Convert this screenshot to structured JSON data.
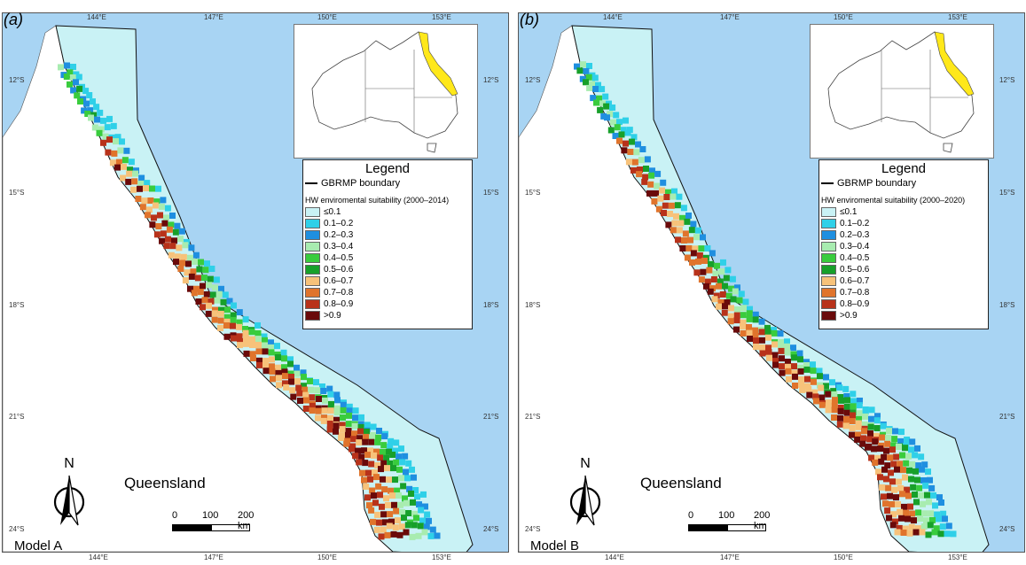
{
  "panels": [
    {
      "id": "a",
      "letter": "(a)",
      "model_label": "Model A",
      "legend_title": "Legend",
      "boundary_label": "GBRMP boundary",
      "suitability_title": "HW enviromental suitability (2000–2014)",
      "place_label": "Queensland",
      "north_label": "N",
      "scale_labels": [
        "0",
        "100",
        "200 km"
      ],
      "lon_ticks_top": [
        "144°E",
        "147°E",
        "150°E",
        "153°E"
      ],
      "lon_ticks_bottom": [
        "144°E",
        "147°E",
        "150°E",
        "153°E"
      ],
      "lat_ticks_left": [
        "12°S",
        "15°S",
        "18°S",
        "21°S",
        "24°S"
      ],
      "lat_ticks_right": [
        "12°S",
        "15°S",
        "18°S",
        "21°S",
        "24°S"
      ]
    },
    {
      "id": "b",
      "letter": "(b)",
      "model_label": "Model B",
      "legend_title": "Legend",
      "boundary_label": "GBRMP boundary",
      "suitability_title": "HW enviromental suitability (2000–2020)",
      "place_label": "Queensland",
      "north_label": "N",
      "scale_labels": [
        "0",
        "100",
        "200 km"
      ],
      "lon_ticks_top": [
        "144°E",
        "147°E",
        "150°E",
        "153°E"
      ],
      "lon_ticks_bottom": [
        "144°E",
        "147°E",
        "150°E",
        "153°E"
      ],
      "lat_ticks_left": [
        "12°S",
        "15°S",
        "18°S",
        "21°S",
        "24°S"
      ],
      "lat_ticks_right": [
        "12°S",
        "15°S",
        "18°S",
        "21°S",
        "24°S"
      ]
    }
  ],
  "legend_classes": [
    {
      "label": "≤0.1",
      "color": "#c9f2f5"
    },
    {
      "label": "0.1–0.2",
      "color": "#2fd0e8"
    },
    {
      "label": "0.2–0.3",
      "color": "#1f8fe0"
    },
    {
      "label": "0.3–0.4",
      "color": "#a8ecb0"
    },
    {
      "label": "0.4–0.5",
      "color": "#39cc3d"
    },
    {
      "label": "0.5–0.6",
      "color": "#17a02a"
    },
    {
      "label": "0.6–0.7",
      "color": "#f7c27a"
    },
    {
      "label": "0.7–0.8",
      "color": "#e0742c"
    },
    {
      "label": "0.8–0.9",
      "color": "#b8321a"
    },
    {
      "label": ">0.9",
      "color": "#6a0a0a"
    }
  ],
  "colors": {
    "sea": "#a8d4f3",
    "land": "#ffffff",
    "gbrmp_region": "#c9f2f5",
    "inset_highlight": "#ffe81a"
  }
}
